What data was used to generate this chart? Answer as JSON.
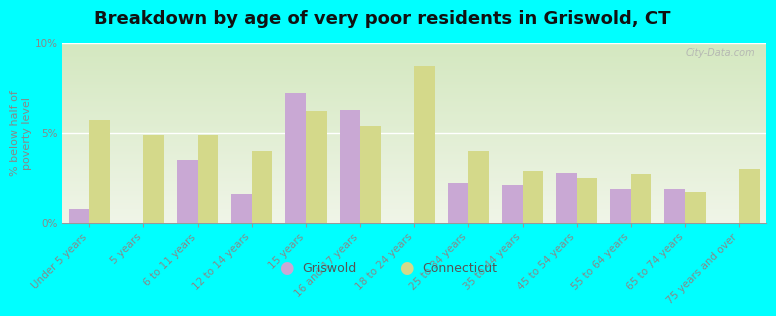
{
  "title": "Breakdown by age of very poor residents in Griswold, CT",
  "ylabel": "% below half of\npoverty level",
  "categories": [
    "Under 5 years",
    "5 years",
    "6 to 11 years",
    "12 to 14 years",
    "15 years",
    "16 and 17 years",
    "18 to 24 years",
    "25 to 34 years",
    "35 to 44 years",
    "45 to 54 years",
    "55 to 64 years",
    "65 to 74 years",
    "75 years and over"
  ],
  "griswold": [
    0.8,
    0.0,
    3.5,
    1.6,
    7.2,
    6.3,
    0.0,
    2.2,
    2.1,
    2.8,
    1.9,
    1.9,
    0.0
  ],
  "connecticut": [
    5.7,
    4.9,
    4.9,
    4.0,
    6.2,
    5.4,
    8.7,
    4.0,
    2.9,
    2.5,
    2.7,
    1.7,
    3.0
  ],
  "griswold_color": "#c9a8d4",
  "connecticut_color": "#d4d98a",
  "background_color": "#00ffff",
  "plot_bg_top": "#d4e8c0",
  "plot_bg_bottom": "#f0f5e8",
  "ylim": [
    0,
    10
  ],
  "yticks": [
    0,
    5,
    10
  ],
  "ytick_labels": [
    "0%",
    "5%",
    "10%"
  ],
  "bar_width": 0.38,
  "title_fontsize": 13,
  "axis_label_fontsize": 8,
  "tick_fontsize": 7.5,
  "tick_color": "#888888",
  "legend_labels": [
    "Griswold",
    "Connecticut"
  ],
  "watermark": "City-Data.com"
}
